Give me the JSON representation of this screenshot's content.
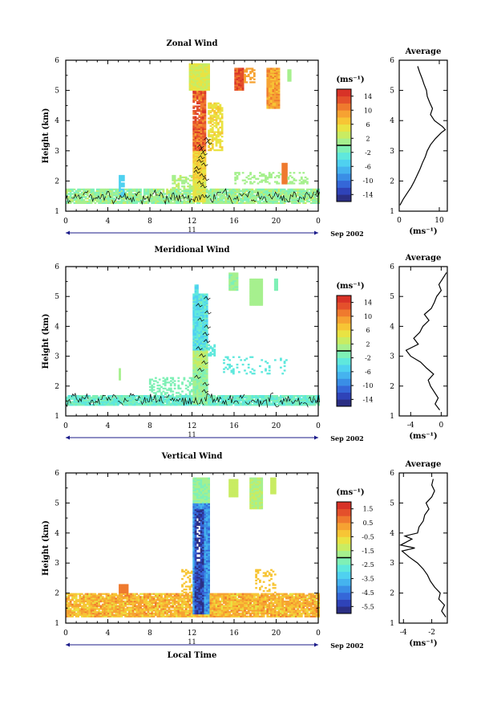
{
  "figure": {
    "date_label": "Sep 2002",
    "day_label": "11",
    "xlabel": "Local Time"
  },
  "colormap": [
    "#2b2f84",
    "#2f43b8",
    "#3567d8",
    "#3a8ee6",
    "#45b3ef",
    "#4fd1f0",
    "#5fe8dd",
    "#7ff0b6",
    "#a6f08e",
    "#c9ec62",
    "#e9e343",
    "#f7c535",
    "#f6a232",
    "#ef7a2e",
    "#e4502b",
    "#d83227"
  ],
  "chart_data": [
    {
      "type": "heatmap",
      "title": "Zonal Wind",
      "ylabel": "Height (km)",
      "x_ticks": [
        "0",
        "4",
        "8",
        "12",
        "16",
        "20",
        "0"
      ],
      "x_range": [
        0,
        24
      ],
      "y_ticks": [
        "1",
        "2",
        "3",
        "4",
        "5",
        "6"
      ],
      "y_range": [
        1,
        6
      ],
      "colorbar": {
        "unit": "(ms⁻¹)",
        "ticks": [
          "14",
          "10",
          "6",
          "2",
          "-2",
          "-6",
          "-10",
          "-14"
        ],
        "range": [
          -16,
          16
        ]
      },
      "profile": {
        "title": "Average",
        "xlabel": "(ms⁻¹)",
        "x_ticks": [
          "0",
          "10"
        ],
        "x_range": [
          0,
          12
        ],
        "height": [
          1.2,
          1.4,
          1.6,
          1.8,
          2.0,
          2.2,
          2.4,
          2.6,
          2.8,
          3.0,
          3.2,
          3.4,
          3.6,
          3.7,
          3.8,
          4.0,
          4.2,
          4.4,
          4.6,
          4.8,
          5.0,
          5.2,
          5.4,
          5.6,
          5.8
        ],
        "value": [
          0.2,
          1.0,
          2.0,
          3.0,
          3.8,
          4.5,
          5.2,
          5.8,
          6.5,
          7.0,
          7.8,
          9.0,
          10.5,
          11.5,
          10.8,
          8.8,
          7.8,
          8.3,
          7.6,
          7.0,
          6.8,
          6.2,
          5.7,
          5.1,
          4.6
        ]
      }
    },
    {
      "type": "heatmap",
      "title": "Meridional Wind",
      "ylabel": "Height (km)",
      "x_ticks": [
        "0",
        "4",
        "8",
        "12",
        "16",
        "20",
        "0"
      ],
      "x_range": [
        0,
        24
      ],
      "y_ticks": [
        "1",
        "2",
        "3",
        "4",
        "5",
        "6"
      ],
      "y_range": [
        1,
        6
      ],
      "colorbar": {
        "unit": "(ms⁻¹)",
        "ticks": [
          "14",
          "10",
          "6",
          "2",
          "-2",
          "-6",
          "-10",
          "-14"
        ],
        "range": [
          -16,
          16
        ]
      },
      "profile": {
        "title": "Average",
        "xlabel": "(ms⁻¹)",
        "x_ticks": [
          "-4",
          "0"
        ],
        "x_range": [
          -5.5,
          0.8
        ],
        "height": [
          1.2,
          1.4,
          1.6,
          1.8,
          2.0,
          2.2,
          2.4,
          2.6,
          2.8,
          3.0,
          3.2,
          3.4,
          3.6,
          3.8,
          4.0,
          4.2,
          4.4,
          4.6,
          4.8,
          5.0,
          5.2,
          5.4,
          5.6,
          5.8
        ],
        "value": [
          -0.2,
          -0.8,
          -0.4,
          -0.9,
          -1.4,
          -1.7,
          -1.0,
          -1.9,
          -2.7,
          -4.0,
          -4.6,
          -3.0,
          -3.6,
          -2.8,
          -2.4,
          -1.6,
          -2.2,
          -1.3,
          -0.9,
          -0.6,
          0.0,
          -0.3,
          0.2,
          0.7
        ]
      }
    },
    {
      "type": "heatmap",
      "title": "Vertical Wind",
      "ylabel": "Height (km)",
      "x_ticks": [
        "0",
        "4",
        "8",
        "12",
        "16",
        "20",
        "0"
      ],
      "x_range": [
        0,
        24
      ],
      "y_ticks": [
        "1",
        "2",
        "3",
        "4",
        "5",
        "6"
      ],
      "y_range": [
        1,
        6
      ],
      "colorbar": {
        "unit": "(ms⁻¹)",
        "ticks": [
          "1.5",
          "0.5",
          "-0.5",
          "-1.5",
          "-2.5",
          "-3.5",
          "-4.5",
          "-5.5"
        ],
        "range": [
          -6,
          2
        ]
      },
      "profile": {
        "title": "Average",
        "xlabel": "(ms⁻¹)",
        "x_ticks": [
          "-4",
          "-2"
        ],
        "x_range": [
          -4.3,
          -0.9
        ],
        "height": [
          1.2,
          1.4,
          1.6,
          1.8,
          2.0,
          2.2,
          2.4,
          2.6,
          2.8,
          3.0,
          3.2,
          3.4,
          3.5,
          3.6,
          3.8,
          3.9,
          4.0,
          4.2,
          4.4,
          4.6,
          4.8,
          5.0,
          5.2,
          5.4,
          5.6,
          5.8
        ],
        "value": [
          -1.0,
          -1.3,
          -1.1,
          -1.5,
          -1.4,
          -1.8,
          -2.1,
          -2.3,
          -2.6,
          -3.0,
          -3.6,
          -4.1,
          -3.2,
          -4.2,
          -3.4,
          -3.9,
          -3.0,
          -2.9,
          -2.6,
          -2.5,
          -2.2,
          -2.4,
          -2.0,
          -1.8,
          -2.0,
          -1.9
        ]
      }
    }
  ]
}
